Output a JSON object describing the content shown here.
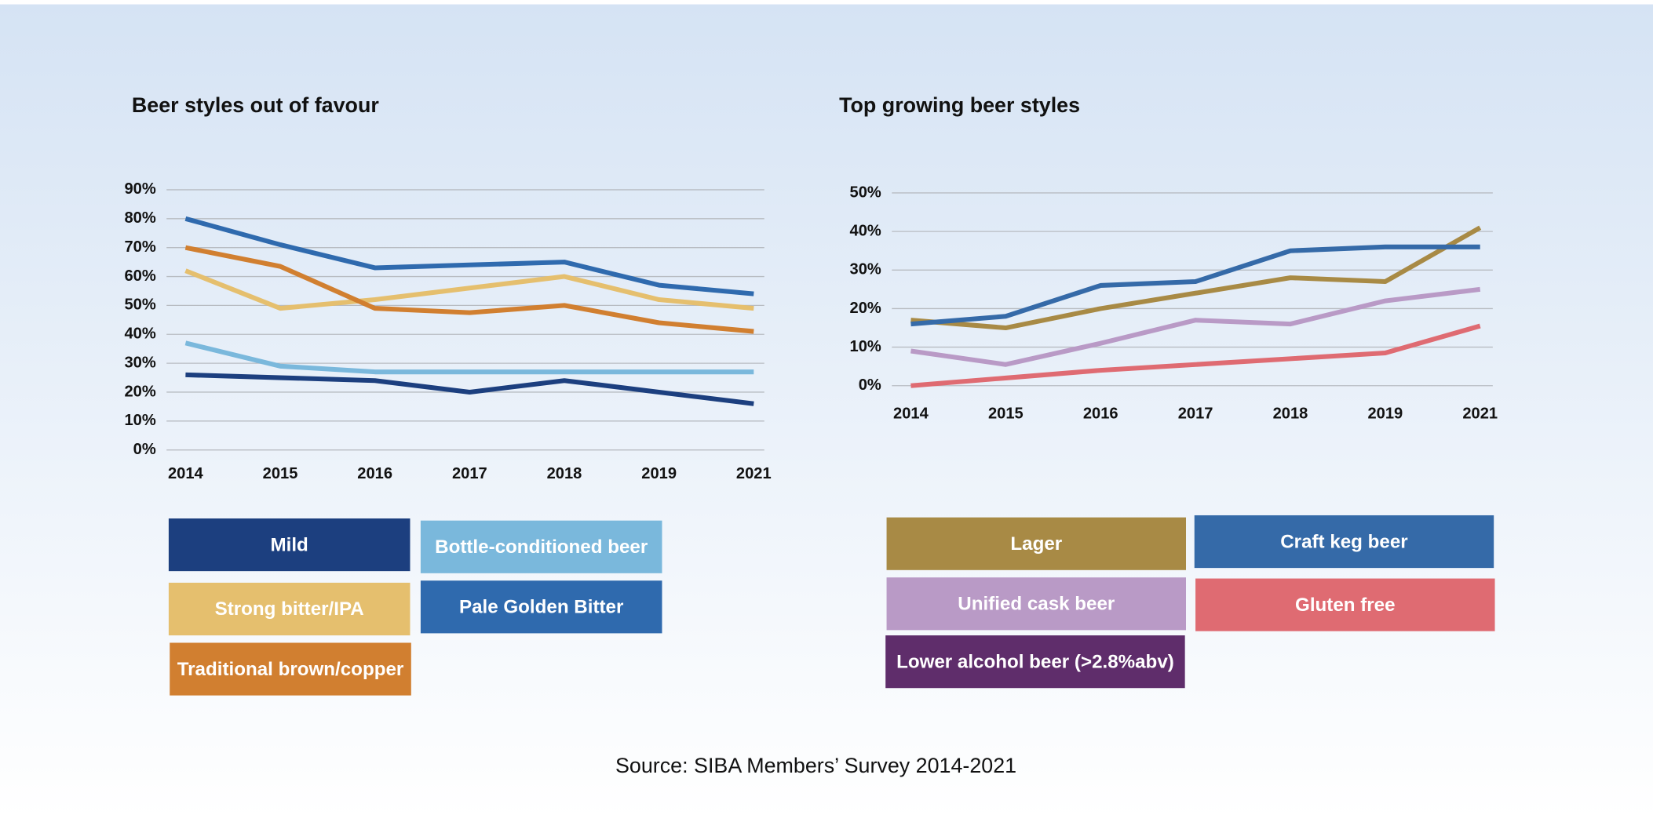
{
  "chart_data": [
    {
      "type": "line",
      "title": "Beer styles out of favour",
      "categories": [
        "2014",
        "2015",
        "2016",
        "2017",
        "2018",
        "2019",
        "2021"
      ],
      "ylim": [
        0,
        90
      ],
      "yticks": [
        {
          "value": 0,
          "label": "0%"
        },
        {
          "value": 10,
          "label": "10%"
        },
        {
          "value": 20,
          "label": "20%"
        },
        {
          "value": 30,
          "label": "30%"
        },
        {
          "value": 40,
          "label": "40%"
        },
        {
          "value": 50,
          "label": "50%"
        },
        {
          "value": 60,
          "label": "60%"
        },
        {
          "value": 70,
          "label": "70%"
        },
        {
          "value": 80,
          "label": "80%"
        },
        {
          "value": 90,
          "label": "90%"
        }
      ],
      "grid": true,
      "series": [
        {
          "name": "Mild",
          "color": "#1c3f7f",
          "values": [
            26,
            25,
            24,
            20,
            24,
            20,
            16
          ]
        },
        {
          "name": "Bottle-conditioned beer",
          "color": "#7ab8dc",
          "values": [
            37,
            29,
            27,
            27,
            27,
            27,
            27
          ]
        },
        {
          "name": "Strong bitter/IPA",
          "color": "#e5bf6e",
          "values": [
            62,
            49,
            52,
            56,
            60,
            52,
            49
          ]
        },
        {
          "name": "Pale Golden Bitter",
          "color": "#2f6aae",
          "values": [
            80,
            71,
            63,
            64,
            65,
            57,
            54
          ]
        },
        {
          "name": "Traditional brown/copper",
          "color": "#d17f30",
          "values": [
            70,
            63.5,
            49,
            47.5,
            50,
            44,
            41
          ]
        }
      ]
    },
    {
      "type": "line",
      "title": "Top growing beer styles",
      "categories": [
        "2014",
        "2015",
        "2016",
        "2017",
        "2018",
        "2019",
        "2021"
      ],
      "ylim": [
        0,
        50
      ],
      "yticks": [
        {
          "value": 0,
          "label": "0%"
        },
        {
          "value": 10,
          "label": "10%"
        },
        {
          "value": 20,
          "label": "20%"
        },
        {
          "value": 30,
          "label": "30%"
        },
        {
          "value": 40,
          "label": "40%"
        },
        {
          "value": 50,
          "label": "50%"
        }
      ],
      "grid": true,
      "series": [
        {
          "name": "Lager",
          "color": "#a88a45",
          "values": [
            17,
            15,
            20,
            24,
            28,
            27,
            41
          ]
        },
        {
          "name": "Craft keg beer",
          "color": "#356aa8",
          "values": [
            16,
            18,
            26,
            27,
            35,
            36,
            36
          ]
        },
        {
          "name": "Unified cask beer",
          "color": "#b99ac6",
          "values": [
            9,
            5.5,
            11,
            17,
            16,
            22,
            25
          ]
        },
        {
          "name": "Gluten free",
          "color": "#df6b72",
          "values": [
            0,
            2,
            4,
            5.5,
            7,
            8.5,
            15.5
          ]
        },
        {
          "name": "Lower alcohol beer (>2.8%abv)",
          "color": "#5f2d6b",
          "values": [
            null,
            null,
            null,
            null,
            null,
            null,
            null
          ]
        }
      ]
    }
  ],
  "footer": "Source: SIBA Members’ Survey 2014-2021"
}
